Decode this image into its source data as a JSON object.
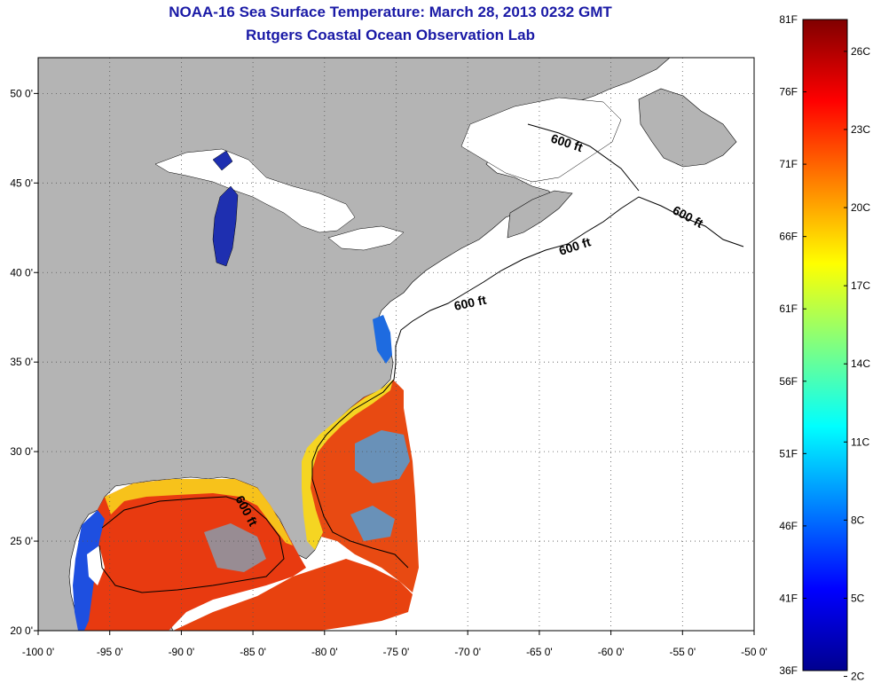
{
  "title": {
    "line1": "NOAA-16 Sea Surface Temperature:  March 28, 2013 0232 GMT",
    "line2": "Rutgers Coastal Ocean Observation Lab"
  },
  "map": {
    "lon_range": [
      -100,
      -50
    ],
    "lat_range": [
      20,
      52
    ],
    "lon_ticks": [
      {
        "value": -100,
        "label": "-100 0'"
      },
      {
        "value": -95,
        "label": "-95 0'"
      },
      {
        "value": -90,
        "label": "-90 0'"
      },
      {
        "value": -85,
        "label": "-85 0'"
      },
      {
        "value": -80,
        "label": "-80 0'"
      },
      {
        "value": -75,
        "label": "-75 0'"
      },
      {
        "value": -70,
        "label": "-70 0'"
      },
      {
        "value": -65,
        "label": "-65 0'"
      },
      {
        "value": -60,
        "label": "-60 0'"
      },
      {
        "value": -55,
        "label": "-55 0'"
      },
      {
        "value": -50,
        "label": "-50 0'"
      }
    ],
    "lat_ticks": [
      {
        "value": 20,
        "label": "20 0'"
      },
      {
        "value": 25,
        "label": "25 0'"
      },
      {
        "value": 30,
        "label": "30 0'"
      },
      {
        "value": 35,
        "label": "35 0'"
      },
      {
        "value": 40,
        "label": "40 0'"
      },
      {
        "value": 45,
        "label": "45 0'"
      },
      {
        "value": 50,
        "label": "50 0'"
      }
    ],
    "contour_labels": [
      "600 ft",
      "600 ft",
      "600 ft",
      "600 ft",
      "600 ft"
    ],
    "grid": "dotted",
    "colors": {
      "land": "#b4b4b4",
      "ice_or_cloud": "#ffffff",
      "shelf_line": "#000000"
    }
  },
  "colorbar": {
    "range_f": [
      36,
      81
    ],
    "fahrenheit_labels": [
      "81F",
      "76F",
      "71F",
      "66F",
      "61F",
      "56F",
      "51F",
      "46F",
      "41F",
      "36F"
    ],
    "celsius_labels": [
      "26C",
      "23C",
      "20C",
      "17C",
      "14C",
      "11C",
      "8C",
      "5C",
      "2C"
    ],
    "celsius_values_f": [
      78.8,
      73.4,
      68,
      62.6,
      57.2,
      51.8,
      46.4,
      41,
      35.6
    ],
    "colormap": "jet",
    "colors": [
      "#00008f",
      "#0000ff",
      "#0080ff",
      "#00ffff",
      "#80ff80",
      "#ffff00",
      "#ff8000",
      "#ff0000",
      "#800000"
    ]
  }
}
